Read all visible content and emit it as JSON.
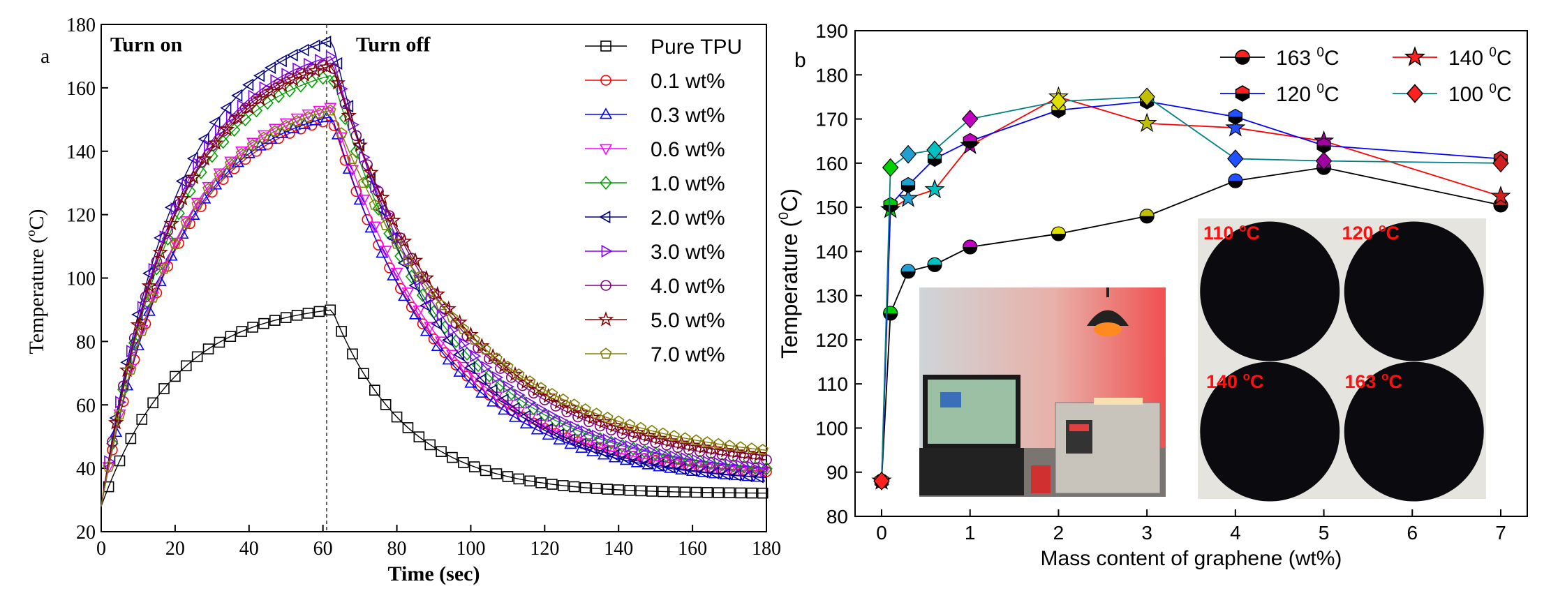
{
  "chart_data": [
    {
      "panel_label": "a",
      "type": "line",
      "xlabel": "Time (sec)",
      "ylabel_main": "Temperature (",
      "ylabel_sup": "o",
      "ylabel_tail": "C)",
      "xlim": [
        0,
        180
      ],
      "ylim": [
        20,
        180
      ],
      "xticks": [
        0,
        20,
        40,
        60,
        80,
        100,
        120,
        140,
        160,
        180
      ],
      "yticks": [
        20,
        40,
        60,
        80,
        100,
        120,
        140,
        160,
        180
      ],
      "annotations": {
        "turn_on": "Turn on",
        "turn_off": "Turn off",
        "switch_time": 61
      },
      "series": [
        {
          "name": "Pure TPU",
          "color": "#000000",
          "marker": "square",
          "peak": 90,
          "final": 32,
          "decay": 20
        },
        {
          "name": "0.1 wt%",
          "color": "#ff0000",
          "marker": "circle",
          "peak": 150,
          "final": 37,
          "decay": 29
        },
        {
          "name": "0.3 wt%",
          "color": "#0000ff",
          "marker": "triangle-up",
          "peak": 151,
          "final": 35,
          "decay": 29
        },
        {
          "name": "0.6 wt%",
          "color": "#ff00ff",
          "marker": "triangle-down",
          "peak": 154,
          "final": 36,
          "decay": 30
        },
        {
          "name": "1.0 wt%",
          "color": "#00a000",
          "marker": "diamond",
          "peak": 164,
          "final": 37,
          "decay": 31
        },
        {
          "name": "2.0 wt%",
          "color": "#000080",
          "marker": "triangle-left",
          "peak": 175,
          "final": 35,
          "decay": 28
        },
        {
          "name": "3.0 wt%",
          "color": "#8000ff",
          "marker": "triangle-right",
          "peak": 170,
          "final": 37,
          "decay": 31
        },
        {
          "name": "4.0 wt%",
          "color": "#800080",
          "marker": "circle",
          "peak": 168,
          "final": 39,
          "decay": 33
        },
        {
          "name": "5.0 wt%",
          "color": "#800000",
          "marker": "star",
          "peak": 167,
          "final": 40,
          "decay": 34
        },
        {
          "name": "7.0 wt%",
          "color": "#808000",
          "marker": "pentagon",
          "peak": 153,
          "final": 41,
          "decay": 37
        }
      ]
    },
    {
      "panel_label": "b",
      "type": "line",
      "xlabel": "Mass content of graphene (wt%)",
      "ylabel_main": "Temperature (",
      "ylabel_sup": "0",
      "ylabel_tail": "C)",
      "xlim": [
        -0.3,
        7.3
      ],
      "ylim": [
        80,
        190
      ],
      "xticks": [
        0,
        1,
        2,
        3,
        4,
        5,
        6,
        7
      ],
      "yticks": [
        80,
        90,
        100,
        110,
        120,
        130,
        140,
        150,
        160,
        170,
        180,
        190
      ],
      "x": [
        0,
        0.1,
        0.3,
        0.6,
        1,
        2,
        3,
        4,
        5,
        7
      ],
      "series": [
        {
          "name": "163",
          "unit_sup": "0",
          "unit": "C",
          "color": "#000000",
          "marker": "circle",
          "values": [
            88,
            126,
            135.5,
            137,
            141,
            144,
            148,
            156,
            159,
            150.5
          ]
        },
        {
          "name": "140",
          "unit_sup": "0",
          "unit": "C",
          "color": "#ff0000",
          "marker": "star",
          "values": [
            88,
            149.5,
            152,
            154,
            164,
            175,
            169,
            168,
            165,
            152.5
          ]
        },
        {
          "name": "120",
          "unit_sup": "0",
          "unit": "C",
          "color": "#0000ff",
          "marker": "hexagon",
          "values": [
            88,
            150.5,
            155,
            161,
            165,
            172,
            174,
            170.5,
            164,
            161
          ]
        },
        {
          "name": "100",
          "unit_sup": "0",
          "unit": "C",
          "color": "#008080",
          "marker": "diamond",
          "values": [
            88,
            159,
            162,
            163,
            170,
            174,
            175,
            161,
            160.5,
            160
          ]
        }
      ],
      "point_colors": [
        "#ff2020",
        "#00d000",
        "#20a0d0",
        "#00c0c0",
        "#c000c0",
        "#e0e000",
        "#c0c000",
        "#2050ff",
        "#a000a0",
        "#d02020"
      ],
      "insets": [
        {
          "name": "photo-setup",
          "caption": ""
        },
        {
          "name": "photo-discs",
          "captions": [
            "110 ",
            "120 ",
            "140 ",
            "163 "
          ],
          "cap_sup": "o",
          "cap_unit": "C"
        }
      ]
    }
  ]
}
